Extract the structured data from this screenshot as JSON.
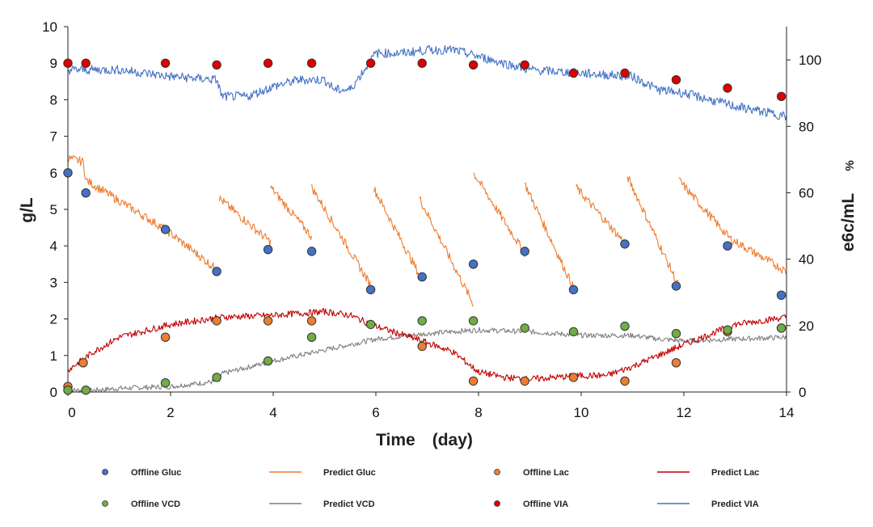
{
  "chart_data": {
    "type": "line",
    "title": "",
    "xlabel": "Time　(day)",
    "ylabel_left": "g/L",
    "ylabel_right": "e6c/mL",
    "ylabel_right_unit": "%",
    "xlim": [
      0,
      14
    ],
    "ylim_left": [
      0,
      10
    ],
    "ylim_right": [
      0,
      110
    ],
    "x_ticks": [
      "0",
      "2",
      "4",
      "6",
      "8",
      "10",
      "12",
      "14"
    ],
    "y_left_ticks": [
      "0",
      "1",
      "2",
      "3",
      "4",
      "5",
      "6",
      "7",
      "8",
      "9",
      "10"
    ],
    "y_right_ticks": [
      "0",
      "20",
      "40",
      "60",
      "80",
      "100"
    ],
    "grid": false,
    "colors": {
      "offline_gluc": "#4472C4",
      "predict_gluc": "#ED7D31",
      "offline_lac": "#ED7D31",
      "predict_lac": "#C00000",
      "offline_vcd": "#70AD47",
      "predict_vcd": "#7F7F7F",
      "offline_via": "#E00000",
      "predict_via": "#4472C4"
    },
    "series": [
      {
        "name": "Offline Gluc",
        "kind": "marker",
        "axis": "left",
        "color_key": "offline_gluc",
        "x": [
          0,
          0.35,
          1.9,
          2.9,
          3.9,
          4.75,
          5.9,
          6.9,
          7.9,
          8.9,
          9.85,
          10.85,
          11.85,
          12.85,
          13.9
        ],
        "y": [
          6.0,
          5.45,
          4.45,
          3.3,
          3.9,
          3.85,
          2.8,
          3.15,
          3.5,
          3.85,
          2.8,
          4.05,
          2.9,
          4.0,
          2.65
        ]
      },
      {
        "name": "Predict Gluc",
        "kind": "sawtooth",
        "axis": "left",
        "color_key": "predict_gluc",
        "noise": 0.12,
        "segments": [
          [
            [
              0,
              6.4
            ],
            [
              0.3,
              6.3
            ],
            [
              0.35,
              5.8
            ],
            [
              1.9,
              4.45
            ],
            [
              2.95,
              3.3
            ]
          ],
          [
            [
              2.95,
              5.3
            ],
            [
              3.95,
              4.1
            ]
          ],
          [
            [
              3.95,
              5.6
            ],
            [
              4.75,
              4.25
            ]
          ],
          [
            [
              4.75,
              5.6
            ],
            [
              5.95,
              2.8
            ]
          ],
          [
            [
              5.95,
              5.6
            ],
            [
              6.85,
              3.2
            ]
          ],
          [
            [
              6.85,
              5.3
            ],
            [
              7.9,
              2.4
            ]
          ],
          [
            [
              7.9,
              6.0
            ],
            [
              8.9,
              3.8
            ]
          ],
          [
            [
              8.9,
              5.7
            ],
            [
              9.9,
              2.7
            ]
          ],
          [
            [
              9.9,
              5.6
            ],
            [
              10.9,
              4.0
            ]
          ],
          [
            [
              10.9,
              5.9
            ],
            [
              11.9,
              2.9
            ]
          ],
          [
            [
              11.9,
              5.8
            ],
            [
              12.9,
              4.2
            ],
            [
              14,
              3.3
            ]
          ]
        ]
      },
      {
        "name": "Offline Lac",
        "kind": "marker",
        "axis": "left",
        "color_key": "offline_lac",
        "x": [
          0,
          0.3,
          1.9,
          2.9,
          3.9,
          4.75,
          6.9,
          7.9,
          8.9,
          9.85,
          10.85,
          11.85,
          12.85,
          13.9
        ],
        "y": [
          0.15,
          0.8,
          1.5,
          1.95,
          1.95,
          1.95,
          1.25,
          0.3,
          0.3,
          0.4,
          0.3,
          0.8,
          1.65,
          1.75
        ]
      },
      {
        "name": "Predict Lac",
        "kind": "line",
        "axis": "left",
        "color_key": "predict_lac",
        "noise": 0.09,
        "x": [
          0,
          0.5,
          1.0,
          2.0,
          3.0,
          4.0,
          5.0,
          5.5,
          6.0,
          7.0,
          7.5,
          8.0,
          8.5,
          9.0,
          10.0,
          10.5,
          11.0,
          12.0,
          13.0,
          14.0
        ],
        "y": [
          0.6,
          1.1,
          1.5,
          1.85,
          2.05,
          2.1,
          2.2,
          2.1,
          1.8,
          1.35,
          1.1,
          0.55,
          0.4,
          0.35,
          0.45,
          0.45,
          0.7,
          1.3,
          1.85,
          2.05
        ]
      },
      {
        "name": "Offline VCD",
        "kind": "marker",
        "axis": "left",
        "color_key": "offline_vcd",
        "x": [
          0,
          0.35,
          1.9,
          2.9,
          3.9,
          4.75,
          5.9,
          6.9,
          7.9,
          8.9,
          9.85,
          10.85,
          11.85,
          12.85,
          13.9
        ],
        "y": [
          0.05,
          0.05,
          0.25,
          0.4,
          0.85,
          1.5,
          1.85,
          1.95,
          1.95,
          1.75,
          1.65,
          1.8,
          1.6,
          1.7,
          1.75
        ]
      },
      {
        "name": "Predict VCD",
        "kind": "line",
        "axis": "left",
        "color_key": "predict_vcd",
        "noise": 0.07,
        "x": [
          0,
          0.5,
          1.0,
          2.0,
          2.95,
          3.0,
          4.0,
          5.0,
          6.0,
          7.0,
          8.0,
          9.0,
          10.0,
          11.0,
          11.5,
          12.0,
          13.0,
          14.0
        ],
        "y": [
          0.05,
          0.05,
          0.1,
          0.15,
          0.3,
          0.5,
          0.85,
          1.15,
          1.45,
          1.6,
          1.7,
          1.65,
          1.55,
          1.55,
          1.45,
          1.4,
          1.45,
          1.5
        ]
      },
      {
        "name": "Offline VIA",
        "kind": "marker",
        "axis": "right",
        "color_key": "offline_via",
        "x": [
          0,
          0.35,
          1.9,
          2.9,
          3.9,
          4.75,
          5.9,
          6.9,
          7.9,
          8.9,
          9.85,
          10.85,
          11.85,
          12.85,
          13.9
        ],
        "y": [
          99,
          99,
          99,
          98.5,
          99,
          99,
          99,
          99,
          98.5,
          98.5,
          96,
          96,
          94,
          91.5,
          89
        ]
      },
      {
        "name": "Predict VIA",
        "kind": "line",
        "axis": "right",
        "color_key": "predict_via",
        "noise": 1.4,
        "x": [
          0,
          0.5,
          1.0,
          2.0,
          2.9,
          3.0,
          3.5,
          4.0,
          4.5,
          5.0,
          5.2,
          5.5,
          6.0,
          6.5,
          7.0,
          7.5,
          8.0,
          9.0,
          10.0,
          11.0,
          11.5,
          12.0,
          13.0,
          14.0
        ],
        "y": [
          97,
          97,
          97,
          95,
          94,
          89,
          89,
          92,
          94,
          94,
          91,
          91,
          102,
          102,
          103,
          103,
          101,
          97,
          96,
          95,
          91,
          90,
          86,
          83
        ]
      }
    ],
    "legend": [
      [
        "Offline Gluc",
        "Predict Gluc",
        "Offline Lac",
        "Predict Lac"
      ],
      [
        "Offline VCD",
        "Predict VCD",
        "Offline VIA",
        "Predict VIA"
      ]
    ],
    "legend_position": "bottom"
  }
}
